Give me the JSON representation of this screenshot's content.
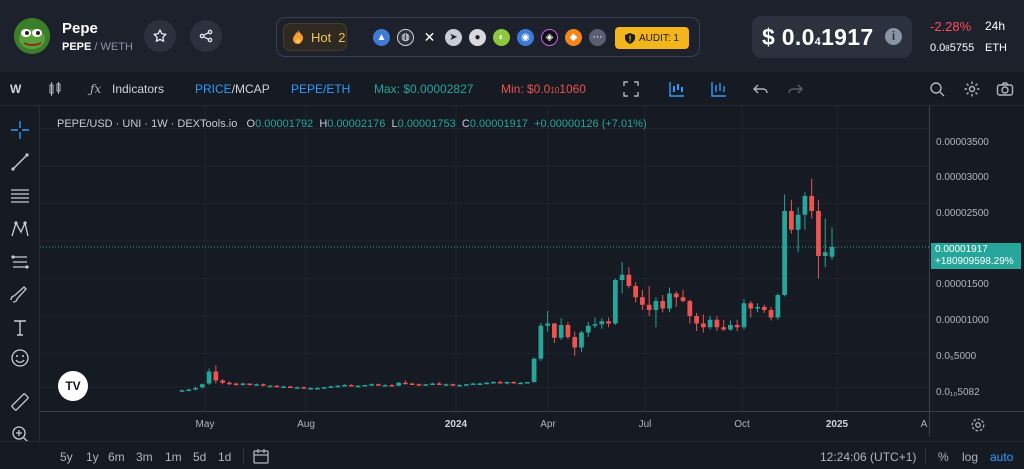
{
  "token": {
    "name": "Pepe",
    "pair_base": "PEPE",
    "pair_quote": "WETH"
  },
  "social": {
    "hot_label": "Hot",
    "hot_count": "2",
    "icons": [
      "chart-icon",
      "globe-icon",
      "x-icon",
      "telegram-icon",
      "reddit-icon",
      "coingecko-icon",
      "coinmarketcap-icon",
      "dextools-icon",
      "metamask-icon",
      "more-icon"
    ],
    "audit_label": "AUDIT: 1"
  },
  "price": {
    "prefix": "$ 0.0",
    "sub": "4",
    "tail": "1917",
    "change": "-2.28%",
    "period": "24h",
    "eth_prefix": "0.0",
    "eth_sub": "8",
    "eth_tail": "5755",
    "eth_unit": "ETH"
  },
  "toolbar": {
    "interval": "W",
    "indicators": "Indicators",
    "price_label": "PRICE",
    "mcap_label": "/MCAP",
    "pair": "PEPE/ETH",
    "max": "Max: $0.00002827",
    "min_prefix": "Min: $0.0",
    "min_sub": "10",
    "min_tail": "1060"
  },
  "legend": {
    "symbol": "PEPE/USD · UNI · 1W · DEXTools.io",
    "o_label": "O",
    "o": "0.00001792",
    "h_label": "H",
    "h": "0.00002176",
    "l_label": "L",
    "l": "0.00001753",
    "c_label": "C",
    "c": "0.00001917",
    "chg": "+0.00000126 (+7.01%)"
  },
  "yaxis": {
    "labels": [
      "0.00003500",
      "0.00003000",
      "0.00002500",
      "0.00002000",
      "0.00001500",
      "0.00001000",
      "0.0₅5000",
      "0.0₁₀5082"
    ],
    "current_prefix": "0.00001917",
    "current_change": "+180909598.29%"
  },
  "xaxis": {
    "labels": [
      "May",
      "Aug",
      "2024",
      "Apr",
      "Jul",
      "Oct",
      "2025",
      "A"
    ]
  },
  "bottom": {
    "ranges": [
      "5y",
      "1y",
      "6m",
      "3m",
      "1m",
      "5d",
      "1d"
    ],
    "time": "12:24:06 (UTC+1)",
    "percent": "%",
    "log": "log",
    "auto": "auto"
  },
  "colors": {
    "up": "#26a69a",
    "down": "#ef5350",
    "accent": "#2962ff"
  },
  "chart_data": {
    "type": "candlestick",
    "series_name": "PEPE/USD",
    "interval": "1W",
    "ylim": [
      0,
      3.8e-05
    ],
    "candles": [
      {
        "o": 1e-07,
        "h": 2e-07,
        "l": 5e-08,
        "c": 1e-07
      },
      {
        "o": 1e-07,
        "h": 3e-07,
        "l": 8e-08,
        "c": 2e-07
      },
      {
        "o": 2e-07,
        "h": 6e-07,
        "l": 1e-07,
        "c": 4e-07
      },
      {
        "o": 5e-07,
        "h": 1e-06,
        "l": 3e-07,
        "c": 9e-07
      },
      {
        "o": 1e-06,
        "h": 3e-06,
        "l": 8e-07,
        "c": 2.6e-06
      },
      {
        "o": 2.6e-06,
        "h": 3.4e-06,
        "l": 1e-06,
        "c": 1.4e-06
      },
      {
        "o": 1.4e-06,
        "h": 1.6e-06,
        "l": 9e-07,
        "c": 1.1e-06
      },
      {
        "o": 1.1e-06,
        "h": 1.3e-06,
        "l": 8e-07,
        "c": 1e-06
      },
      {
        "o": 1e-06,
        "h": 1.1e-06,
        "l": 7e-07,
        "c": 8e-07
      },
      {
        "o": 8e-07,
        "h": 1.1e-06,
        "l": 7e-07,
        "c": 1e-06
      },
      {
        "o": 1e-06,
        "h": 1e-06,
        "l": 7e-07,
        "c": 8e-07
      },
      {
        "o": 8e-07,
        "h": 1e-06,
        "l": 7e-07,
        "c": 9e-07
      },
      {
        "o": 9e-07,
        "h": 1e-06,
        "l": 6e-07,
        "c": 7e-07
      },
      {
        "o": 7e-07,
        "h": 8e-07,
        "l": 6e-07,
        "c": 7e-07
      },
      {
        "o": 7e-07,
        "h": 8e-07,
        "l": 5e-07,
        "c": 6e-07
      },
      {
        "o": 6e-07,
        "h": 7e-07,
        "l": 5e-07,
        "c": 6e-07
      },
      {
        "o": 6e-07,
        "h": 7e-07,
        "l": 4e-07,
        "c": 5e-07
      },
      {
        "o": 5e-07,
        "h": 6e-07,
        "l": 4e-07,
        "c": 5e-07
      },
      {
        "o": 5e-07,
        "h": 6e-07,
        "l": 4e-07,
        "c": 4e-07
      },
      {
        "o": 4e-07,
        "h": 5e-07,
        "l": 4e-07,
        "c": 4e-07
      },
      {
        "o": 4e-07,
        "h": 5e-07,
        "l": 3e-07,
        "c": 4e-07
      },
      {
        "o": 4e-07,
        "h": 5e-07,
        "l": 4e-07,
        "c": 5e-07
      },
      {
        "o": 5e-07,
        "h": 7e-07,
        "l": 4e-07,
        "c": 6e-07
      },
      {
        "o": 6e-07,
        "h": 8e-07,
        "l": 5e-07,
        "c": 7e-07
      },
      {
        "o": 7e-07,
        "h": 9e-07,
        "l": 6e-07,
        "c": 8e-07
      },
      {
        "o": 8e-07,
        "h": 9e-07,
        "l": 6e-07,
        "c": 7e-07
      },
      {
        "o": 7e-07,
        "h": 8e-07,
        "l": 6e-07,
        "c": 7e-07
      },
      {
        "o": 7e-07,
        "h": 8e-07,
        "l": 6e-07,
        "c": 8e-07
      },
      {
        "o": 8e-07,
        "h": 1e-06,
        "l": 7e-07,
        "c": 9e-07
      },
      {
        "o": 9e-07,
        "h": 1e-06,
        "l": 7e-07,
        "c": 8e-07
      },
      {
        "o": 8e-07,
        "h": 9e-07,
        "l": 7e-07,
        "c": 8e-07
      },
      {
        "o": 8e-07,
        "h": 9e-07,
        "l": 6e-07,
        "c": 7e-07
      },
      {
        "o": 7e-07,
        "h": 1.2e-06,
        "l": 6e-07,
        "c": 1.1e-06
      },
      {
        "o": 1.1e-06,
        "h": 1.4e-06,
        "l": 9e-07,
        "c": 1e-06
      },
      {
        "o": 1e-06,
        "h": 1.1e-06,
        "l": 8e-07,
        "c": 9e-07
      },
      {
        "o": 9e-07,
        "h": 1e-06,
        "l": 7e-07,
        "c": 8e-07
      },
      {
        "o": 8e-07,
        "h": 9e-07,
        "l": 7e-07,
        "c": 9e-07
      },
      {
        "o": 9e-07,
        "h": 1.1e-06,
        "l": 8e-07,
        "c": 1e-06
      },
      {
        "o": 1e-06,
        "h": 1.2e-06,
        "l": 8e-07,
        "c": 9e-07
      },
      {
        "o": 9e-07,
        "h": 1e-06,
        "l": 8e-07,
        "c": 9e-07
      },
      {
        "o": 9e-07,
        "h": 1e-06,
        "l": 7e-07,
        "c": 8e-07
      },
      {
        "o": 8e-07,
        "h": 9e-07,
        "l": 7e-07,
        "c": 8e-07
      },
      {
        "o": 8e-07,
        "h": 9e-07,
        "l": 7e-07,
        "c": 9e-07
      },
      {
        "o": 9e-07,
        "h": 1.1e-06,
        "l": 8e-07,
        "c": 1e-06
      },
      {
        "o": 1e-06,
        "h": 1.1e-06,
        "l": 9e-07,
        "c": 1e-06
      },
      {
        "o": 1e-06,
        "h": 1.2e-06,
        "l": 9e-07,
        "c": 1.1e-06
      },
      {
        "o": 1.1e-06,
        "h": 1.3e-06,
        "l": 1e-06,
        "c": 1.2e-06
      },
      {
        "o": 1.2e-06,
        "h": 1.4e-06,
        "l": 1e-06,
        "c": 1.1e-06
      },
      {
        "o": 1.1e-06,
        "h": 1.3e-06,
        "l": 9e-07,
        "c": 1.2e-06
      },
      {
        "o": 1.2e-06,
        "h": 1.3e-06,
        "l": 1e-06,
        "c": 1.1e-06
      },
      {
        "o": 1.1e-06,
        "h": 1.2e-06,
        "l": 1e-06,
        "c": 1.1e-06
      },
      {
        "o": 1.1e-06,
        "h": 1.2e-06,
        "l": 1e-06,
        "c": 1.2e-06
      },
      {
        "o": 1.2e-06,
        "h": 4.5e-06,
        "l": 1.1e-06,
        "c": 4.3e-06
      },
      {
        "o": 4.3e-06,
        "h": 9.1e-06,
        "l": 4e-06,
        "c": 8.7e-06
      },
      {
        "o": 8.7e-06,
        "h": 1.07e-05,
        "l": 7.9e-06,
        "c": 9e-06
      },
      {
        "o": 9e-06,
        "h": 9.1e-06,
        "l": 6.4e-06,
        "c": 7.1e-06
      },
      {
        "o": 7.1e-06,
        "h": 9.7e-06,
        "l": 6.8e-06,
        "c": 8.8e-06
      },
      {
        "o": 8.8e-06,
        "h": 9.2e-06,
        "l": 6.9e-06,
        "c": 7.2e-06
      },
      {
        "o": 7.2e-06,
        "h": 7.9e-06,
        "l": 4.7e-06,
        "c": 5.8e-06
      },
      {
        "o": 5.8e-06,
        "h": 8e-06,
        "l": 5.2e-06,
        "c": 7.8e-06
      },
      {
        "o": 7.8e-06,
        "h": 9.2e-06,
        "l": 7.2e-06,
        "c": 8.7e-06
      },
      {
        "o": 8.7e-06,
        "h": 9.8e-06,
        "l": 8.4e-06,
        "c": 8.9e-06
      },
      {
        "o": 8.9e-06,
        "h": 9.7e-06,
        "l": 8.3e-06,
        "c": 9.3e-06
      },
      {
        "o": 9.3e-06,
        "h": 9.8e-06,
        "l": 8.5e-06,
        "c": 9e-06
      },
      {
        "o": 9e-06,
        "h": 1.5e-05,
        "l": 8.8e-06,
        "c": 1.48e-05
      },
      {
        "o": 1.48e-05,
        "h": 1.72e-05,
        "l": 1.3e-05,
        "c": 1.55e-05
      },
      {
        "o": 1.55e-05,
        "h": 1.65e-05,
        "l": 1.37e-05,
        "c": 1.4e-05
      },
      {
        "o": 1.4e-05,
        "h": 1.45e-05,
        "l": 1.18e-05,
        "c": 1.25e-05
      },
      {
        "o": 1.25e-05,
        "h": 1.35e-05,
        "l": 1.08e-05,
        "c": 1.15e-05
      },
      {
        "o": 1.15e-05,
        "h": 1.4e-05,
        "l": 1e-05,
        "c": 1.08e-05
      },
      {
        "o": 1.08e-05,
        "h": 1.25e-05,
        "l": 8.5e-06,
        "c": 1.2e-05
      },
      {
        "o": 1.2e-05,
        "h": 1.28e-05,
        "l": 1.05e-05,
        "c": 1.1e-05
      },
      {
        "o": 1.1e-05,
        "h": 1.38e-05,
        "l": 1.05e-05,
        "c": 1.3e-05
      },
      {
        "o": 1.3e-05,
        "h": 1.33e-05,
        "l": 1.12e-05,
        "c": 1.25e-05
      },
      {
        "o": 1.25e-05,
        "h": 1.35e-05,
        "l": 1.18e-05,
        "c": 1.2e-05
      },
      {
        "o": 1.2e-05,
        "h": 1.22e-05,
        "l": 9e-06,
        "c": 1e-05
      },
      {
        "o": 1e-05,
        "h": 1.04e-05,
        "l": 8e-06,
        "c": 9e-06
      },
      {
        "o": 9e-06,
        "h": 1.02e-05,
        "l": 7.8e-06,
        "c": 8.5e-06
      },
      {
        "o": 8.5e-06,
        "h": 1e-05,
        "l": 8.2e-06,
        "c": 9.5e-06
      },
      {
        "o": 9.5e-06,
        "h": 1e-05,
        "l": 8e-06,
        "c": 8.5e-06
      },
      {
        "o": 8.5e-06,
        "h": 9.5e-06,
        "l": 8e-06,
        "c": 8.2e-06
      },
      {
        "o": 8.2e-06,
        "h": 9.4e-06,
        "l": 8e-06,
        "c": 8.8e-06
      },
      {
        "o": 8.8e-06,
        "h": 9.5e-06,
        "l": 8e-06,
        "c": 8.5e-06
      },
      {
        "o": 8.5e-06,
        "h": 1.23e-05,
        "l": 8.2e-06,
        "c": 1.17e-05
      },
      {
        "o": 1.17e-05,
        "h": 1.2e-05,
        "l": 9.8e-06,
        "c": 1.1e-05
      },
      {
        "o": 1.1e-05,
        "h": 1.17e-05,
        "l": 1.05e-05,
        "c": 1.12e-05
      },
      {
        "o": 1.12e-05,
        "h": 1.15e-05,
        "l": 1.04e-05,
        "c": 1.08e-05
      },
      {
        "o": 1.08e-05,
        "h": 1.12e-05,
        "l": 9.4e-06,
        "c": 9.8e-06
      },
      {
        "o": 9.8e-06,
        "h": 1.3e-05,
        "l": 9.5e-06,
        "c": 1.28e-05
      },
      {
        "o": 1.28e-05,
        "h": 2.62e-05,
        "l": 1.26e-05,
        "c": 2.4e-05
      },
      {
        "o": 2.4e-05,
        "h": 2.55e-05,
        "l": 2.1e-05,
        "c": 2.15e-05
      },
      {
        "o": 2.15e-05,
        "h": 2.45e-05,
        "l": 1.85e-05,
        "c": 2.35e-05
      },
      {
        "o": 2.35e-05,
        "h": 2.65e-05,
        "l": 2.15e-05,
        "c": 2.6e-05
      },
      {
        "o": 2.6e-05,
        "h": 2.83e-05,
        "l": 2.3e-05,
        "c": 2.4e-05
      },
      {
        "o": 2.4e-05,
        "h": 2.55e-05,
        "l": 1.5e-05,
        "c": 1.8e-05
      },
      {
        "o": 1.8e-05,
        "h": 2.3e-05,
        "l": 1.65e-05,
        "c": 1.85e-05
      },
      {
        "o": 1.79e-05,
        "h": 2.18e-05,
        "l": 1.75e-05,
        "c": 1.92e-05
      }
    ]
  }
}
